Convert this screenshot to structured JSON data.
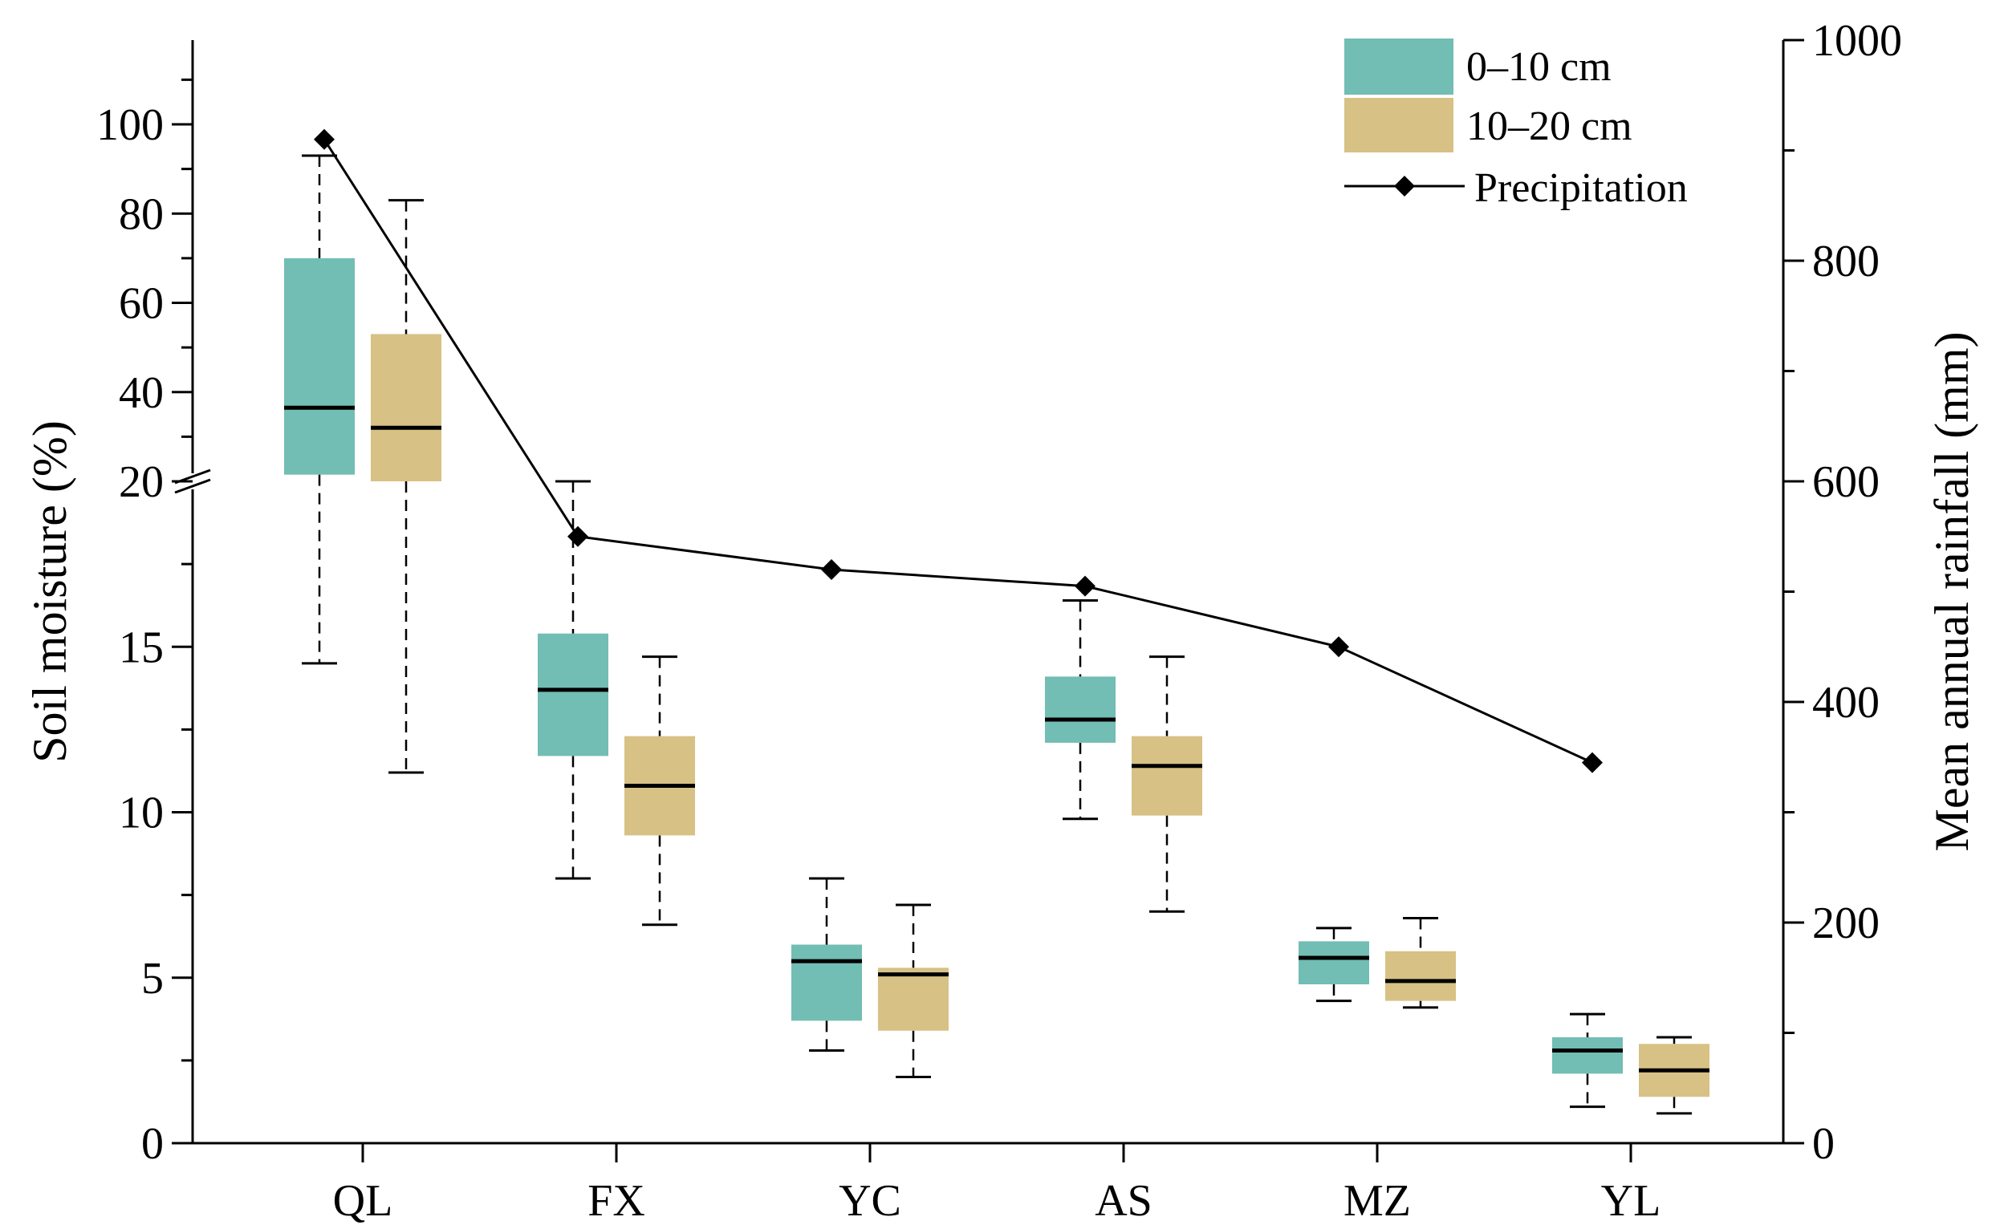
{
  "chart_data": {
    "type": "box",
    "categories": [
      "QL",
      "FX",
      "YC",
      "AS",
      "MZ",
      "YL"
    ],
    "ylabel_left": "Soil moisture (%)",
    "ylabel_right": "Mean annual rainfall (mm)",
    "left_axis": {
      "break_at": 20,
      "lower_range": [
        0,
        20
      ],
      "upper_range": [
        20,
        120
      ],
      "ticks": [
        0,
        5,
        10,
        15,
        20,
        40,
        60,
        80,
        100
      ],
      "tick_labels": [
        "0",
        "5",
        "10",
        "15",
        "20",
        "40",
        "60",
        "80",
        "100"
      ]
    },
    "right_axis": {
      "range": [
        0,
        1000
      ],
      "ticks": [
        0,
        200,
        400,
        600,
        800,
        1000
      ],
      "tick_labels": [
        "0",
        "200",
        "400",
        "600",
        "800",
        "1000"
      ]
    },
    "series": [
      {
        "name": "0–10 cm",
        "color": "#72bdb4",
        "boxes": [
          {
            "min": 14.5,
            "q1": 21.5,
            "median": 36.5,
            "q3": 70,
            "max": 93
          },
          {
            "min": 8,
            "q1": 11.7,
            "median": 13.7,
            "q3": 15.4,
            "max": 20
          },
          {
            "min": 2.8,
            "q1": 3.7,
            "median": 5.5,
            "q3": 6,
            "max": 8
          },
          {
            "min": 9.8,
            "q1": 12.1,
            "median": 12.8,
            "q3": 14.1,
            "max": 16.4
          },
          {
            "min": 4.3,
            "q1": 4.8,
            "median": 5.6,
            "q3": 6.1,
            "max": 6.5
          },
          {
            "min": 1.1,
            "q1": 2.1,
            "median": 2.8,
            "q3": 3.2,
            "max": 3.9
          }
        ]
      },
      {
        "name": "10–20 cm",
        "color": "#d7c185",
        "boxes": [
          {
            "min": 11.2,
            "q1": 20,
            "median": 32,
            "q3": 53,
            "max": 83
          },
          {
            "min": 6.6,
            "q1": 9.3,
            "median": 10.8,
            "q3": 12.3,
            "max": 14.7
          },
          {
            "min": 2,
            "q1": 3.4,
            "median": 5.1,
            "q3": 5.3,
            "max": 7.2
          },
          {
            "min": 7,
            "q1": 9.9,
            "median": 11.4,
            "q3": 12.3,
            "max": 14.7
          },
          {
            "min": 4.1,
            "q1": 4.3,
            "median": 4.9,
            "q3": 5.8,
            "max": 6.8
          },
          {
            "min": 0.9,
            "q1": 1.4,
            "median": 2.2,
            "q3": 3.0,
            "max": 3.2
          }
        ]
      }
    ],
    "line": {
      "name": "Precipitation",
      "color": "#000000",
      "values": [
        910,
        550,
        520,
        505,
        450,
        345
      ]
    },
    "legend_position": "top-right"
  }
}
